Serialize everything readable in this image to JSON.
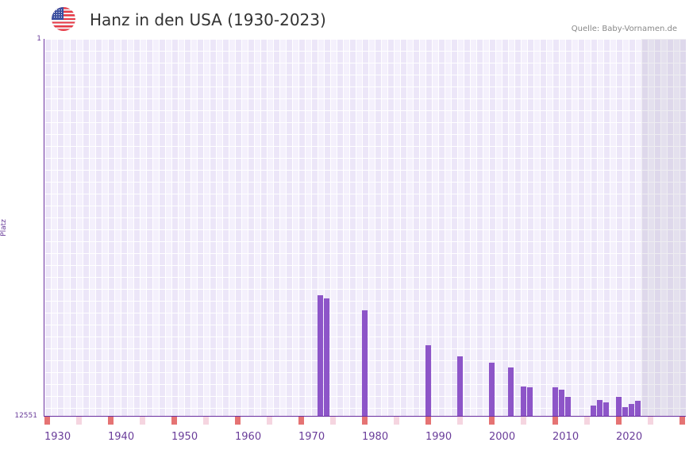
{
  "header": {
    "flag_icon": "us-flag-icon",
    "title": "Hanz in den USA (1930-2023)",
    "source": "Quelle: Baby-Vornamen.de"
  },
  "colors": {
    "bar": "#8d55c8",
    "axis": "#6a2fa0",
    "decade_marker": "#e57373",
    "half_decade_marker": "#f5d5e0",
    "future_shade": "#e2deea"
  },
  "chart_data": {
    "type": "bar",
    "title": "Hanz in den USA (1930-2023)",
    "xlabel": "",
    "ylabel": "Platz",
    "y_inverted": true,
    "ylim": [
      1,
      12551
    ],
    "y_ticks": [
      "1",
      "12551"
    ],
    "x_range": [
      1930,
      2030
    ],
    "x_ticks": [
      "1930",
      "1940",
      "1950",
      "1960",
      "1970",
      "1980",
      "1990",
      "2000",
      "2010",
      "2020"
    ],
    "future_shaded_from": 2024,
    "grid": true,
    "legend": null,
    "categories": [
      1973,
      1974,
      1980,
      1990,
      1995,
      2000,
      2003,
      2005,
      2006,
      2010,
      2011,
      2012,
      2016,
      2017,
      2018,
      2020,
      2021,
      2022,
      2023
    ],
    "values": [
      8535,
      8640,
      9037,
      10200,
      10570,
      10780,
      10940,
      11570,
      11600,
      11600,
      11680,
      11920,
      12210,
      12020,
      12100,
      11920,
      12260,
      12150,
      12050
    ]
  },
  "axis": {
    "ylabel": "Platz",
    "ytop": "1",
    "ybottom": "12551",
    "xticks": [
      "1930",
      "1940",
      "1950",
      "1960",
      "1970",
      "1980",
      "1990",
      "2000",
      "2010",
      "2020"
    ]
  }
}
